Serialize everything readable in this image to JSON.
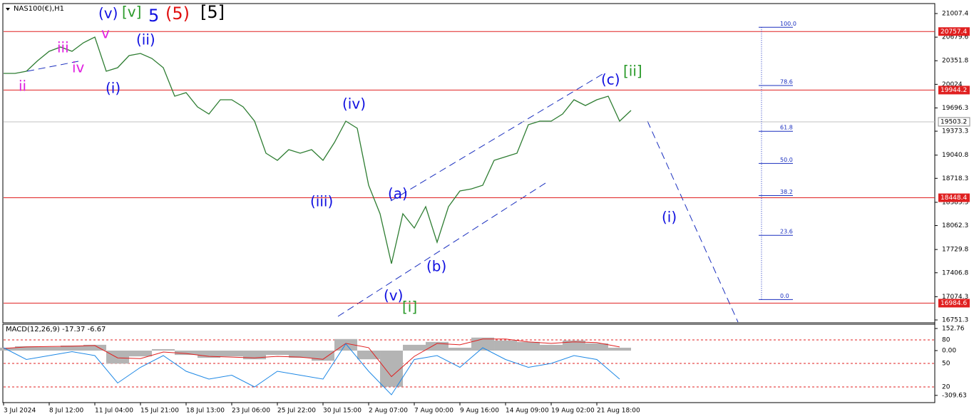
{
  "chart_data": [
    {
      "type": "line",
      "title": "NAS100(€),H1",
      "x": [
        0,
        0.25,
        0.5,
        0.75,
        1,
        1.25,
        1.5,
        1.75,
        2,
        2.25,
        2.5,
        2.75,
        3,
        3.25,
        3.5,
        3.75,
        4,
        4.25,
        4.5,
        4.75,
        5,
        5.25,
        5.5,
        5.75,
        6,
        6.25,
        6.5,
        6.75,
        7,
        7.25,
        7.5,
        7.75,
        8,
        8.25,
        8.5,
        8.75,
        9,
        9.25,
        9.5,
        9.75,
        10,
        10.25,
        10.5,
        10.75,
        11,
        11.25,
        11.5,
        11.75,
        12,
        12.25,
        12.5,
        12.75,
        13,
        13.25,
        13.5,
        13.75
      ],
      "series": [
        {
          "color": "#2e7d32",
          "values": [
            20176,
            20176,
            20206,
            20354,
            20483,
            20542,
            20483,
            20602,
            20681,
            20206,
            20255,
            20423,
            20453,
            20384,
            20255,
            19859,
            19909,
            19711,
            19612,
            19810,
            19810,
            19711,
            19513,
            19067,
            18968,
            19117,
            19067,
            19117,
            18968,
            19216,
            19513,
            19414,
            18622,
            18226,
            17533,
            18226,
            18028,
            18325,
            17830,
            18325,
            18543,
            18572,
            18622,
            18968,
            19018,
            19067,
            19463,
            19513,
            19513,
            19612,
            19810,
            19730,
            19810,
            19859,
            19513,
            19661
          ]
        }
      ],
      "xlim": [
        0,
        20.39
      ],
      "xticks": [
        {
          "value": 0,
          "label": "3 Jul 2024"
        },
        {
          "value": 1,
          "label": "8 Jul 12:00"
        },
        {
          "value": 2,
          "label": "11 Jul 04:00"
        },
        {
          "value": 3,
          "label": "15 Jul 21:00"
        },
        {
          "value": 4,
          "label": "18 Jul 13:00"
        },
        {
          "value": 5,
          "label": "23 Jul 06:00"
        },
        {
          "value": 6,
          "label": "25 Jul 22:00"
        },
        {
          "value": 7,
          "label": "30 Jul 15:00"
        },
        {
          "value": 8,
          "label": "2 Aug 07:00"
        },
        {
          "value": 9,
          "label": "7 Aug 00:00"
        },
        {
          "value": 10,
          "label": "9 Aug 16:00"
        },
        {
          "value": 11,
          "label": "14 Aug 09:00"
        },
        {
          "value": 12,
          "label": "19 Aug 02:00"
        },
        {
          "value": 13,
          "label": "21 Aug 18:00"
        }
      ],
      "ylim": [
        16711.7,
        21146
      ],
      "yticks": [
        21007.4,
        20679.6,
        20351.8,
        20024.0,
        19696.3,
        19373.3,
        19040.8,
        18718.3,
        18385.3,
        18062.3,
        17729.8,
        17406.8,
        17074.3,
        16751.3
      ],
      "levels": [
        20757.4,
        19944.2,
        18448.4,
        16984.6
      ],
      "level_color": "#e02020",
      "current_price": 19503.2,
      "fib_levels": [
        {
          "value": 100,
          "label": "100.0"
        },
        {
          "value": 78.6,
          "label": "78.6"
        },
        {
          "value": 61.8,
          "label": "61.8"
        },
        {
          "value": 50,
          "label": "50.0"
        },
        {
          "value": 38.2,
          "label": "38.2"
        },
        {
          "value": 23.6,
          "label": "23.6"
        },
        {
          "value": 0,
          "label": "0.0"
        }
      ],
      "annotations": [
        {
          "text": "(v)",
          "color": "#1010e0"
        },
        {
          "text": "[v]",
          "color": "#2a9a2a"
        },
        {
          "text": "5",
          "color": "#1010e0"
        },
        {
          "text": "(5)",
          "color": "#e01010"
        },
        {
          "text": "[5]",
          "color": "#000000"
        },
        {
          "text": "v",
          "color": "#e020e0"
        },
        {
          "text": "iii",
          "color": "#e020e0"
        },
        {
          "text": "iv",
          "color": "#e020e0"
        },
        {
          "text": "ii",
          "color": "#e020e0"
        },
        {
          "text": "(ii)",
          "color": "#1010e0"
        },
        {
          "text": "(i)",
          "color": "#1010e0"
        },
        {
          "text": "(iv)",
          "color": "#1010e0"
        },
        {
          "text": "(iii)",
          "color": "#1010e0"
        },
        {
          "text": "(a)",
          "color": "#1010e0"
        },
        {
          "text": "(b)",
          "color": "#1010e0"
        },
        {
          "text": "(v)",
          "color": "#1010e0"
        },
        {
          "text": "[i]",
          "color": "#2a9a2a"
        },
        {
          "text": "(c)",
          "color": "#1010e0"
        },
        {
          "text": "[ii]",
          "color": "#2a9a2a"
        },
        {
          "text": "(i)",
          "color": "#1010e0"
        }
      ]
    },
    {
      "type": "macd",
      "title": "MACD(12,26,9) -17.37 -6.67",
      "x": [
        0,
        0.5,
        1,
        1.5,
        2,
        2.5,
        3,
        3.5,
        4,
        4.5,
        5,
        5.5,
        6,
        6.5,
        7,
        7.5,
        8,
        8.5,
        9,
        9.5,
        10,
        10.5,
        11,
        11.5,
        12,
        12.5,
        13,
        13.5
      ],
      "xlim": [
        0,
        20.39
      ],
      "series": [
        {
          "color": "#b4b4b4",
          "values": [
            20,
            30,
            25,
            35,
            40,
            -90,
            -40,
            10,
            -30,
            -50,
            -40,
            -60,
            -30,
            -50,
            -70,
            80,
            -60,
            -250,
            40,
            60,
            20,
            90,
            70,
            60,
            40,
            70,
            50,
            20
          ]
        },
        {
          "color": "#e02020",
          "values": [
            15,
            25,
            28,
            30,
            35,
            -50,
            -55,
            -10,
            -20,
            -40,
            -45,
            -50,
            -40,
            -45,
            -60,
            50,
            20,
            -180,
            -40,
            50,
            40,
            80,
            80,
            60,
            50,
            60,
            55,
            25
          ]
        },
        {
          "color": "#1e88e5",
          "axis": "y2",
          "values": [
            70,
            55,
            60,
            65,
            60,
            25,
            45,
            60,
            40,
            30,
            35,
            20,
            40,
            35,
            30,
            75,
            40,
            10,
            55,
            60,
            45,
            70,
            55,
            45,
            50,
            60,
            55,
            30
          ]
        }
      ],
      "ylim": [
        -359.6,
        182.3
      ],
      "yticks": [
        152.76,
        {
          "value": 0,
          "label": "0.00"
        },
        -309.63
      ],
      "y2lim": [
        0,
        100
      ],
      "y2ticks": [
        80,
        50,
        20
      ]
    }
  ]
}
